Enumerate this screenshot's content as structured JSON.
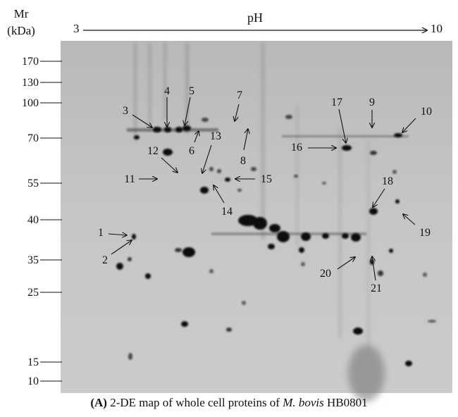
{
  "axis": {
    "y_title_line1": "Mr",
    "y_title_line2": "(kDa)",
    "x_title": "pH",
    "x_start": "3",
    "x_end": "10"
  },
  "mr_markers": [
    "170",
    "130",
    "100",
    "70",
    "55",
    "40",
    "35",
    "25",
    "15",
    "10"
  ],
  "spots": [
    "1",
    "2",
    "3",
    "4",
    "5",
    "6",
    "7",
    "8",
    "9",
    "10",
    "11",
    "12",
    "13",
    "14",
    "15",
    "16",
    "17",
    "18",
    "19",
    "20",
    "21"
  ],
  "caption": {
    "label": "(A)",
    "text_before": " 2-DE map of whole cell proteins of ",
    "species": "M. bovis",
    "text_after": " HB0801"
  },
  "colors": {
    "gel_bg": "#c4c4c4",
    "spot": "#111111",
    "annotation": "#111111"
  }
}
